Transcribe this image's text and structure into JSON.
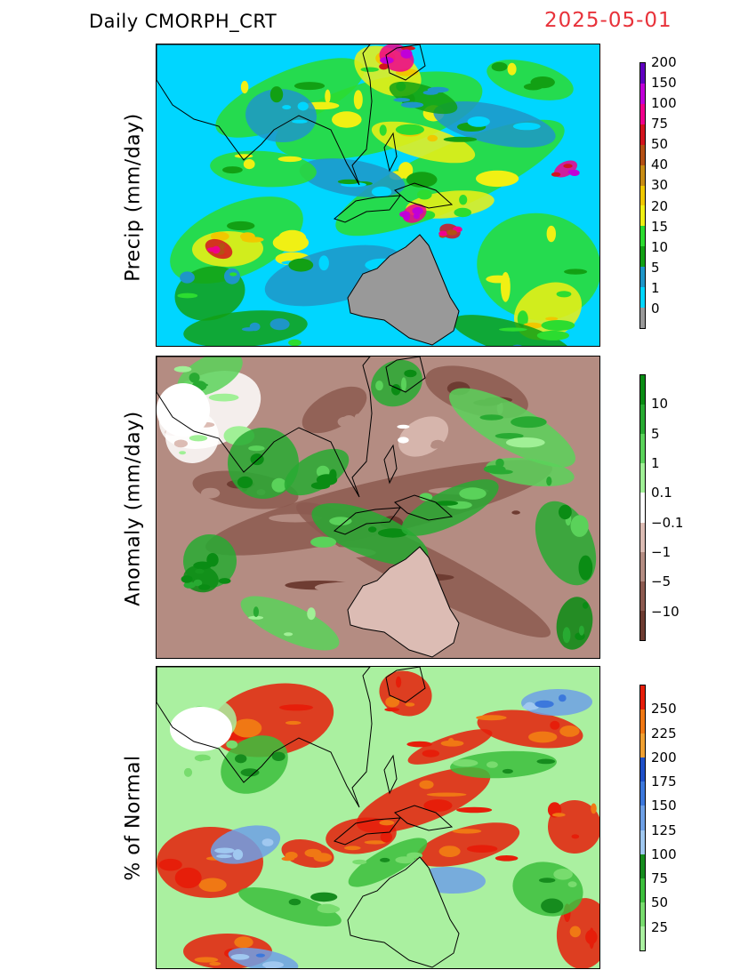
{
  "header": {
    "title": "Daily  CMORPH_CRT",
    "date": "2025-05-01",
    "date_color": "#e8323a"
  },
  "panels": [
    {
      "id": "precip",
      "label": "Precip  (mm/day)",
      "base_color": "#00d6ff",
      "land_color": "#999999",
      "legend": {
        "colors": [
          "#999999",
          "#00d6ff",
          "#1e96c8",
          "#12a014",
          "#2cdc30",
          "#f0f014",
          "#f0c800",
          "#c88c14",
          "#b45014",
          "#d2141e",
          "#f0008c",
          "#c000d8",
          "#6000c0"
        ],
        "labels": [
          "0",
          "1",
          "5",
          "10",
          "15",
          "20",
          "30",
          "40",
          "50",
          "75",
          "100",
          "150",
          "200"
        ]
      }
    },
    {
      "id": "anomaly",
      "label": "Anomaly  (mm/day)",
      "base_color": "#b48c82",
      "land_color": "#dcbcb4",
      "legend": {
        "colors": [
          "#6e3c32",
          "#8c5a50",
          "#b48c82",
          "#dcbcb4",
          "#ffffff",
          "#a0f096",
          "#5ad25a",
          "#28aa32",
          "#0a8c14"
        ],
        "labels": [
          "−10",
          "−5",
          "−1",
          "−0.1",
          "0.1",
          "1",
          "5",
          "10"
        ]
      }
    },
    {
      "id": "percent",
      "label": "% of  Normal",
      "base_color": "#aaf0a0",
      "land_color": "#aaf0a0",
      "legend": {
        "colors": [
          "#aaf0a0",
          "#78dc6e",
          "#3cbe3c",
          "#168c1e",
          "#a0c8f0",
          "#6ea0e6",
          "#3c78dc",
          "#1e50c8",
          "#f0a032",
          "#f07814",
          "#e61e0a"
        ],
        "labels": [
          "25",
          "50",
          "75",
          "100",
          "125",
          "150",
          "175",
          "200",
          "225",
          "250"
        ]
      }
    }
  ]
}
